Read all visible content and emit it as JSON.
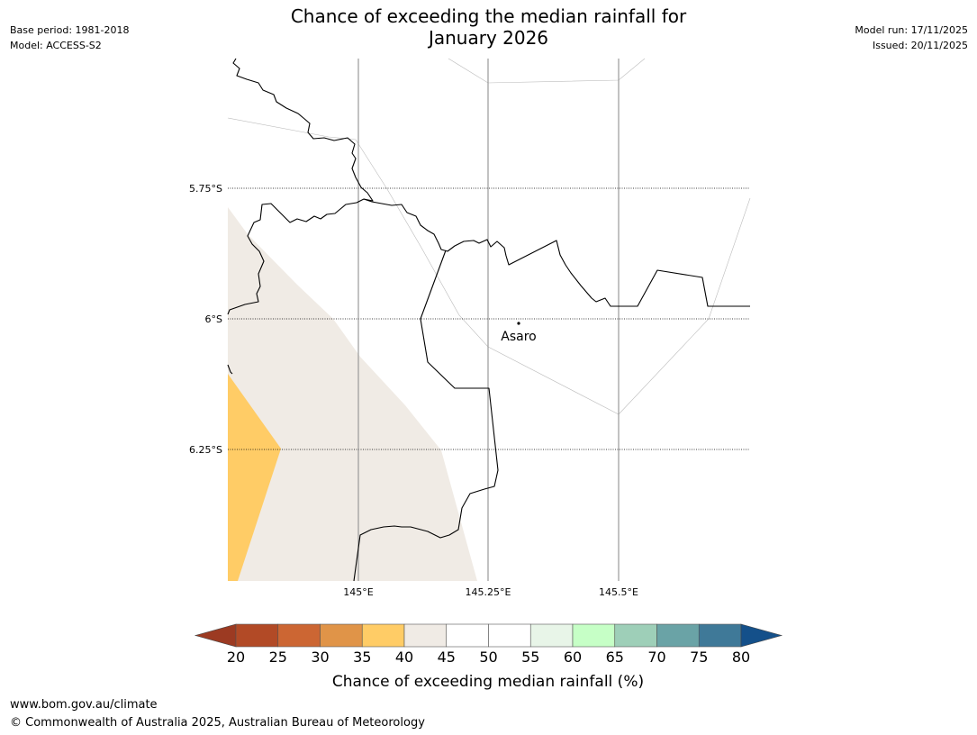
{
  "header": {
    "title_line1": "Chance of exceeding the median rainfall for",
    "title_line2": "January 2026",
    "base_period": "Base period: 1981-2018",
    "model": "Model: ACCESS-S2",
    "model_run": "Model run: 17/11/2025",
    "issued": "Issued: 20/11/2025"
  },
  "map": {
    "lat_labels": [
      "5.75°S",
      "6°S",
      "6.25°S"
    ],
    "lon_labels": [
      "145°E",
      "145.25°E",
      "145.5°E"
    ],
    "place": {
      "name": "Asaro"
    },
    "colors": {
      "border": "#000000",
      "gridline": "#999999",
      "region_40_45": "#f0ebe5",
      "region_35_40": "#ffcc66"
    }
  },
  "colorbar": {
    "ticks": [
      "20",
      "25",
      "30",
      "35",
      "40",
      "45",
      "50",
      "55",
      "60",
      "65",
      "70",
      "75",
      "80"
    ],
    "colors": [
      "#9c3a22",
      "#b24a26",
      "#cc6633",
      "#e09448",
      "#ffcc66",
      "#f0ebe5",
      "#ffffff",
      "#ffffff",
      "#e8f5e8",
      "#c6ffc6",
      "#9ecfb8",
      "#6aa3a6",
      "#3f7998",
      "#14508a"
    ],
    "label": "Chance of exceeding median rainfall (%)"
  },
  "footer": {
    "url": "www.bom.gov.au/climate",
    "copyright": "© Commonwealth of Australia 2025, Australian Bureau of Meteorology"
  }
}
